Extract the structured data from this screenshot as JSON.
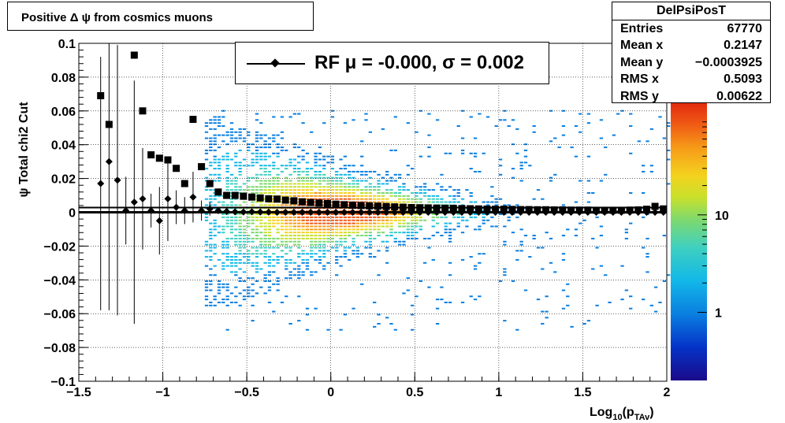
{
  "title": "Positive Δ ψ from cosmics muons",
  "stats": {
    "name": "DelPsiPosT",
    "rows": [
      {
        "label": "Entries",
        "value": "67770"
      },
      {
        "label": "Mean x",
        "value": "0.2147"
      },
      {
        "label": "Mean y",
        "value": "−0.0003925"
      },
      {
        "label": "RMS x",
        "value": "0.5093"
      },
      {
        "label": "RMS y",
        "value": "0.00622"
      }
    ]
  },
  "legend": {
    "text": "RF μ = -0.000, σ =   0.002"
  },
  "chart_data": {
    "type": "heatmap",
    "title": "Positive Δ ψ from cosmics muons",
    "xlabel_main": "Log",
    "xlabel_sub1": "10",
    "xlabel_mid": "(p",
    "xlabel_sub2": "TAv",
    "xlabel_end": ")",
    "ylabel": "ψ  Total chi2 Cut",
    "xlim": [
      -1.5,
      2
    ],
    "ylim": [
      -0.1,
      0.1
    ],
    "x_ticks": [
      -1.5,
      -1,
      -0.5,
      0,
      0.5,
      1,
      1.5,
      2
    ],
    "x_tick_labels": [
      "−1.5",
      "−1",
      "−0.5",
      "0",
      "0.5",
      "1",
      "1.5",
      "2"
    ],
    "y_ticks": [
      -0.1,
      -0.08,
      -0.06,
      -0.04,
      -0.02,
      0,
      0.02,
      0.04,
      0.06,
      0.08,
      0.1
    ],
    "y_tick_labels": [
      "−0.1",
      "−0.08",
      "−0.06",
      "−0.04",
      "−0.02",
      "0",
      "0.02",
      "0.04",
      "0.06",
      "0.08",
      "0.1"
    ],
    "grid": true,
    "colorbar": {
      "scale": "log",
      "tick_labels": [
        "1",
        "10"
      ],
      "tick_values": [
        1,
        10
      ],
      "range": [
        0.2,
        140
      ]
    },
    "rms_points": {
      "marker": "square",
      "points": [
        [
          -1.37,
          0.069
        ],
        [
          -1.32,
          0.052
        ],
        [
          -1.17,
          0.093
        ],
        [
          -1.12,
          0.06
        ],
        [
          -1.07,
          0.034
        ],
        [
          -1.02,
          0.032
        ],
        [
          -0.97,
          0.031
        ],
        [
          -0.92,
          0.026
        ],
        [
          -0.87,
          0.017
        ],
        [
          -0.82,
          0.055
        ],
        [
          -0.77,
          0.027
        ],
        [
          -0.72,
          0.017
        ],
        [
          -0.67,
          0.012
        ],
        [
          -0.62,
          0.01
        ],
        [
          -0.57,
          0.01
        ],
        [
          -0.52,
          0.0095
        ],
        [
          -0.47,
          0.009
        ],
        [
          -0.42,
          0.0085
        ],
        [
          -0.37,
          0.008
        ],
        [
          -0.32,
          0.0078
        ],
        [
          -0.27,
          0.0072
        ],
        [
          -0.22,
          0.0068
        ],
        [
          -0.17,
          0.0062
        ],
        [
          -0.12,
          0.0058
        ],
        [
          -0.07,
          0.0055
        ],
        [
          -0.02,
          0.0052
        ],
        [
          0.03,
          0.0048
        ],
        [
          0.08,
          0.0045
        ],
        [
          0.13,
          0.0042
        ],
        [
          0.18,
          0.004
        ],
        [
          0.23,
          0.0038
        ],
        [
          0.28,
          0.0036
        ],
        [
          0.33,
          0.0034
        ],
        [
          0.38,
          0.0032
        ],
        [
          0.43,
          0.003
        ],
        [
          0.48,
          0.0028
        ],
        [
          0.53,
          0.0027
        ],
        [
          0.58,
          0.0026
        ],
        [
          0.63,
          0.0025
        ],
        [
          0.68,
          0.0024
        ],
        [
          0.73,
          0.0023
        ],
        [
          0.78,
          0.0022
        ],
        [
          0.83,
          0.0021
        ],
        [
          0.88,
          0.002
        ],
        [
          0.93,
          0.0019
        ],
        [
          0.98,
          0.0018
        ],
        [
          1.03,
          0.0018
        ],
        [
          1.08,
          0.0017
        ],
        [
          1.13,
          0.0016
        ],
        [
          1.18,
          0.0016
        ],
        [
          1.23,
          0.0015
        ],
        [
          1.28,
          0.0015
        ],
        [
          1.33,
          0.0014
        ],
        [
          1.38,
          0.0014
        ],
        [
          1.43,
          0.0013
        ],
        [
          1.48,
          0.0013
        ],
        [
          1.53,
          0.0013
        ],
        [
          1.58,
          0.0012
        ],
        [
          1.63,
          0.0012
        ],
        [
          1.68,
          0.0012
        ],
        [
          1.73,
          0.0012
        ],
        [
          1.78,
          0.0013
        ],
        [
          1.83,
          0.0014
        ],
        [
          1.88,
          0.0018
        ],
        [
          1.93,
          0.0035
        ],
        [
          1.98,
          0.002
        ]
      ]
    },
    "mean_points": {
      "marker": "diamond",
      "points": [
        [
          -1.37,
          0.017,
          0.075
        ],
        [
          -1.32,
          0.03,
          0.088
        ],
        [
          -1.27,
          0.019,
          0.08
        ],
        [
          -1.22,
          0.001,
          0.02
        ],
        [
          -1.17,
          0.006,
          0.072
        ],
        [
          -1.12,
          0.008,
          0.03
        ],
        [
          -1.07,
          0.001,
          0.01
        ],
        [
          -1.02,
          -0.005,
          0.02
        ],
        [
          -0.97,
          0.008,
          0.025
        ],
        [
          -0.92,
          0.003,
          0.01
        ],
        [
          -0.87,
          0.001,
          0.008
        ],
        [
          -0.82,
          0.009,
          0.015
        ],
        [
          -0.77,
          0.001,
          0.006
        ],
        [
          -0.72,
          0.002,
          0.004
        ],
        [
          -0.67,
          0.001,
          0.002
        ],
        [
          -0.62,
          0.0005,
          0.001
        ],
        [
          -0.57,
          0.0003,
          0.0
        ],
        [
          -0.52,
          0.0002,
          0.0
        ],
        [
          -0.47,
          0.0003,
          0.0
        ],
        [
          -0.42,
          0.0002,
          0.0
        ],
        [
          -0.37,
          0.0001,
          0.0
        ],
        [
          -0.32,
          0.0,
          0.0
        ],
        [
          -0.27,
          0.0,
          0.0
        ],
        [
          -0.22,
          0.0,
          0.0
        ],
        [
          -0.17,
          0.0,
          0.0
        ],
        [
          -0.12,
          0.0,
          0.0
        ],
        [
          -0.07,
          0.0,
          0.0
        ],
        [
          -0.02,
          0.0,
          0.0
        ],
        [
          0.03,
          0.0,
          0.0
        ],
        [
          0.08,
          0.0,
          0.0
        ],
        [
          0.13,
          0.0,
          0.0
        ],
        [
          0.18,
          0.0,
          0.0
        ],
        [
          0.23,
          0.0,
          0.0
        ],
        [
          0.28,
          0.0,
          0.0
        ],
        [
          0.33,
          0.0,
          0.0
        ],
        [
          0.38,
          0.0,
          0.0
        ],
        [
          0.43,
          0.0,
          0.0
        ],
        [
          0.48,
          0.0,
          0.0
        ],
        [
          0.53,
          0.0,
          0.0
        ],
        [
          0.58,
          0.0,
          0.0
        ],
        [
          0.63,
          0.0,
          0.0
        ],
        [
          0.68,
          0.0,
          0.0
        ],
        [
          0.73,
          0.0,
          0.0
        ],
        [
          0.78,
          0.0,
          0.0
        ],
        [
          0.83,
          0.0,
          0.0
        ],
        [
          0.88,
          0.0,
          0.0
        ],
        [
          0.93,
          0.0,
          0.0
        ],
        [
          0.98,
          0.0,
          0.0
        ],
        [
          1.03,
          0.0,
          0.0
        ],
        [
          1.08,
          0.0,
          0.0
        ],
        [
          1.13,
          0.0,
          0.0
        ],
        [
          1.18,
          0.0,
          0.0
        ],
        [
          1.23,
          0.0,
          0.0
        ],
        [
          1.28,
          0.0,
          0.0
        ],
        [
          1.33,
          0.0,
          0.0
        ],
        [
          1.38,
          0.0,
          0.0
        ],
        [
          1.43,
          0.0,
          0.0
        ],
        [
          1.48,
          0.0,
          0.0
        ],
        [
          1.53,
          0.0,
          0.0
        ],
        [
          1.58,
          0.0,
          0.0
        ],
        [
          1.63,
          0.0,
          0.0
        ],
        [
          1.68,
          0.0,
          0.0
        ],
        [
          1.73,
          0.0,
          0.0
        ],
        [
          1.78,
          0.0,
          0.0
        ],
        [
          1.83,
          0.0,
          0.0
        ],
        [
          1.88,
          0.0,
          0.0
        ],
        [
          1.93,
          0.0,
          0.0
        ],
        [
          1.98,
          0.0,
          0.0
        ]
      ]
    },
    "fit_line": {
      "y": 0.0,
      "x_range": [
        -1.5,
        2
      ]
    }
  }
}
